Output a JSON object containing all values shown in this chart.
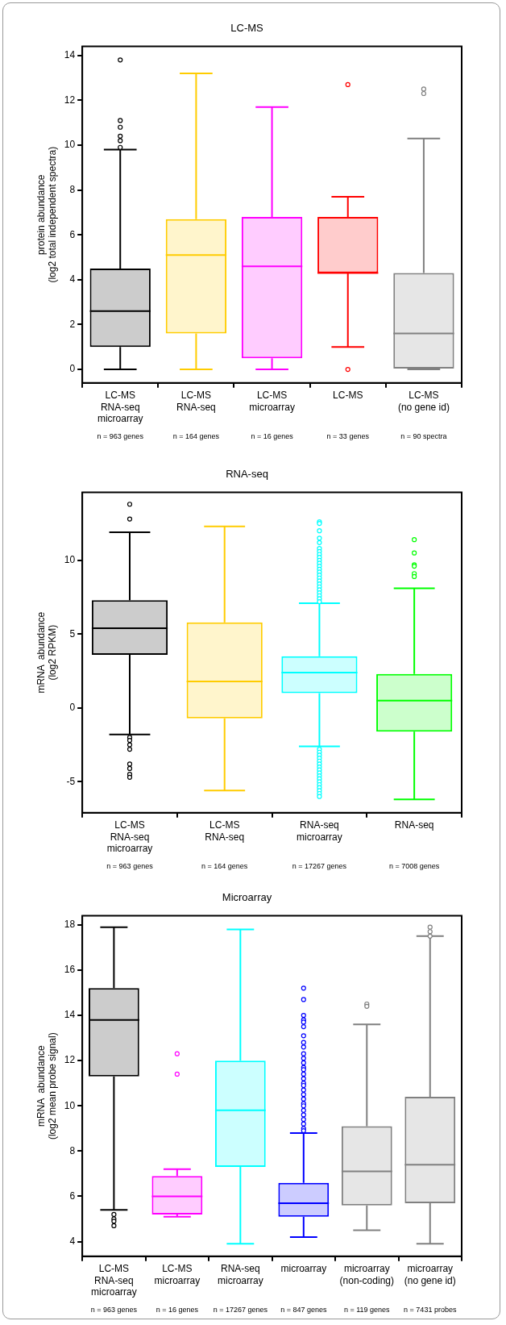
{
  "chart_data": [
    {
      "type": "box",
      "title": "LC-MS",
      "ylabel": "protein abundance\n(log2 total independent spectra)",
      "categories": [
        "LC-MS\nRNA-seq\nmicroarray",
        "LC-MS\nRNA-seq",
        "LC-MS\nmicroarray",
        "LC-MS",
        "LC-MS\n(no gene id)"
      ],
      "colors": [
        "#000000",
        "#ffcc00",
        "#ff00ff",
        "#ff0000",
        "#808080"
      ],
      "boxes": [
        {
          "low": 0,
          "q1": 1.0,
          "median": 2.6,
          "q3": 4.5,
          "high": 9.8,
          "outliers": [
            13.8,
            11.1,
            10.8,
            10.4,
            10.2,
            9.9
          ]
        },
        {
          "low": 0,
          "q1": 1.6,
          "median": 5.1,
          "q3": 6.7,
          "high": 13.2
        },
        {
          "low": 0,
          "q1": 0.5,
          "median": 4.6,
          "q3": 6.8,
          "high": 11.7
        },
        {
          "low": 1.0,
          "q1": 4.3,
          "median": 4.3,
          "q3": 6.8,
          "high": 7.7,
          "outliers": [
            12.7,
            0
          ]
        },
        {
          "low": 0,
          "q1": 0,
          "median": 1.6,
          "q3": 4.3,
          "high": 10.3,
          "outliers": [
            12.5,
            12.3
          ]
        }
      ],
      "ylim": [
        -0.6,
        14.4
      ],
      "yticks": [
        0,
        2,
        4,
        6,
        8,
        10,
        12,
        14
      ],
      "annotations": [
        "n = 963 genes",
        "n = 164 genes",
        "n = 16 genes",
        "n = 33 genes",
        "n = 90 spectra"
      ]
    },
    {
      "type": "box",
      "title": "RNA-seq",
      "ylabel": "mRNA  abundance\n(log2 RPKM)",
      "categories": [
        "LC-MS\nRNA-seq\nmicroarray",
        "LC-MS\nRNA-seq",
        "RNA-seq\nmicroarray",
        "RNA-seq"
      ],
      "colors": [
        "#000000",
        "#ffcc00",
        "#00ffff",
        "#00ff00"
      ],
      "boxes": [
        {
          "low": -1.8,
          "q1": 3.6,
          "median": 5.4,
          "q3": 7.3,
          "high": 11.9,
          "outliers": [
            13.8,
            12.8,
            -2.0,
            -2.2,
            -2.5,
            -2.8,
            -3.8,
            -4.1,
            -4.5,
            -4.7
          ]
        },
        {
          "low": -5.6,
          "q1": -0.7,
          "median": 1.8,
          "q3": 5.8,
          "high": 12.3
        },
        {
          "low": -2.6,
          "q1": 1.0,
          "median": 2.4,
          "q3": 3.5,
          "high": 7.1,
          "outliers": [
            12.6,
            12.5,
            12.0,
            11.5,
            11.2,
            10.8,
            10.6,
            10.4,
            10.2,
            10.0,
            9.8,
            9.6,
            9.4,
            9.2,
            9.0,
            8.8,
            8.6,
            8.4,
            8.2,
            8.0,
            7.8,
            7.6,
            7.4,
            7.2,
            -2.8,
            -3.0,
            -3.2,
            -3.4,
            -3.6,
            -3.8,
            -4.0,
            -4.2,
            -4.4,
            -4.6,
            -4.8,
            -5.0,
            -5.2,
            -5.4,
            -5.6,
            -5.8,
            -6.0
          ]
        },
        {
          "low": -6.2,
          "q1": -1.6,
          "median": 0.5,
          "q3": 2.3,
          "high": 8.1,
          "outliers": [
            11.4,
            10.5,
            9.7,
            9.6,
            9.1,
            8.9
          ]
        }
      ],
      "ylim": [
        -7.1,
        14.6
      ],
      "yticks": [
        -5,
        0,
        5,
        10
      ],
      "annotations": [
        "n = 963 genes",
        "n = 164 genes",
        "n = 17267 genes",
        "n = 7008 genes"
      ]
    },
    {
      "type": "box",
      "title": "Microarray",
      "ylabel": "mRNA  abundance\n(log2 mean probe signal)",
      "categories": [
        "LC-MS\nRNA-seq\nmicroarray",
        "LC-MS\nmicroarray",
        "RNA-seq\nmicroarray",
        "microarray",
        "microarray\n(non-coding)",
        "microarray\n(no gene id)"
      ],
      "colors": [
        "#000000",
        "#ff00ff",
        "#00ffff",
        "#0000ff",
        "#808080",
        "#808080"
      ],
      "boxes": [
        {
          "low": 5.4,
          "q1": 11.3,
          "median": 13.8,
          "q3": 15.2,
          "high": 17.9,
          "outliers": [
            5.2,
            5.0,
            4.9,
            4.7
          ]
        },
        {
          "low": 5.1,
          "q1": 5.2,
          "median": 6.0,
          "q3": 6.9,
          "high": 7.2,
          "outliers": [
            12.3,
            11.4
          ]
        },
        {
          "low": 3.9,
          "q1": 7.3,
          "median": 9.8,
          "q3": 12.0,
          "high": 17.8
        },
        {
          "low": 4.2,
          "q1": 5.1,
          "median": 5.7,
          "q3": 6.6,
          "high": 8.8,
          "outliers": [
            15.2,
            14.7,
            14.0,
            13.8,
            13.7,
            13.5,
            13.1,
            12.8,
            12.6,
            12.3,
            12.1,
            11.9,
            11.7,
            11.6,
            11.4,
            11.2,
            11.0,
            10.9,
            10.7,
            10.5,
            10.3,
            10.1,
            10.0,
            9.8,
            9.6,
            9.4,
            9.2,
            9.0,
            8.9
          ]
        },
        {
          "low": 4.5,
          "q1": 5.6,
          "median": 7.1,
          "q3": 9.1,
          "high": 13.6,
          "outliers": [
            14.5,
            14.4
          ]
        },
        {
          "low": 3.9,
          "q1": 5.7,
          "median": 7.4,
          "q3": 10.4,
          "high": 17.5,
          "outliers": [
            17.9,
            17.7,
            17.5
          ]
        }
      ],
      "ylim": [
        3.35,
        18.4
      ],
      "yticks": [
        4,
        6,
        8,
        10,
        12,
        14,
        16,
        18
      ],
      "annotations": [
        "n = 963 genes",
        "n = 16 genes",
        "n = 17267 genes",
        "n = 847 genes",
        "n = 119 genes",
        "n = 7431 probes"
      ]
    }
  ]
}
